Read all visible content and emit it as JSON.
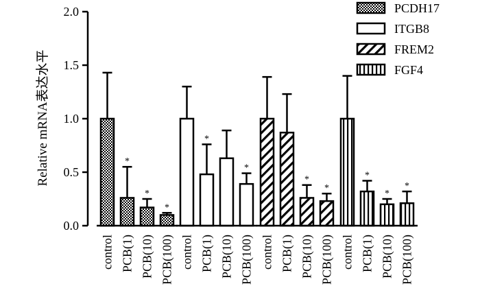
{
  "chart_data": {
    "type": "bar",
    "title": "",
    "xlabel": "",
    "ylabel": "Relative mRNA表达水平",
    "ylim": [
      0,
      2.0
    ],
    "yticks": [
      "0.0",
      "0.5",
      "1.0",
      "1.5",
      "2.0"
    ],
    "ytick_values": [
      0,
      0.5,
      1.0,
      1.5,
      2.0
    ],
    "grid": false,
    "legend_position": "top-right",
    "categories": [
      "control",
      "PCB(1)",
      "PCB(10)",
      "PCB(100)"
    ],
    "series": [
      {
        "name": "PCDH17",
        "pattern": "checker",
        "values": [
          1.0,
          0.26,
          0.17,
          0.1
        ],
        "errors": [
          0.43,
          0.29,
          0.08,
          0.02
        ],
        "significant": [
          false,
          true,
          true,
          true
        ]
      },
      {
        "name": "ITGB8",
        "pattern": "open",
        "values": [
          1.0,
          0.48,
          0.63,
          0.39
        ],
        "errors": [
          0.3,
          0.28,
          0.26,
          0.1
        ],
        "significant": [
          false,
          true,
          false,
          true
        ]
      },
      {
        "name": "FREM2",
        "pattern": "diagonal",
        "values": [
          1.0,
          0.87,
          0.26,
          0.23
        ],
        "errors": [
          0.39,
          0.36,
          0.12,
          0.07
        ],
        "significant": [
          false,
          false,
          true,
          true
        ]
      },
      {
        "name": "FGF4",
        "pattern": "vertical",
        "values": [
          1.0,
          0.32,
          0.2,
          0.21
        ],
        "errors": [
          0.4,
          0.1,
          0.05,
          0.11
        ],
        "significant": [
          false,
          true,
          true,
          true
        ]
      }
    ],
    "significance_marker": "*",
    "colors": {
      "bar_edge": "#000000",
      "fill": "#ffffff",
      "pattern": "#000000"
    }
  }
}
